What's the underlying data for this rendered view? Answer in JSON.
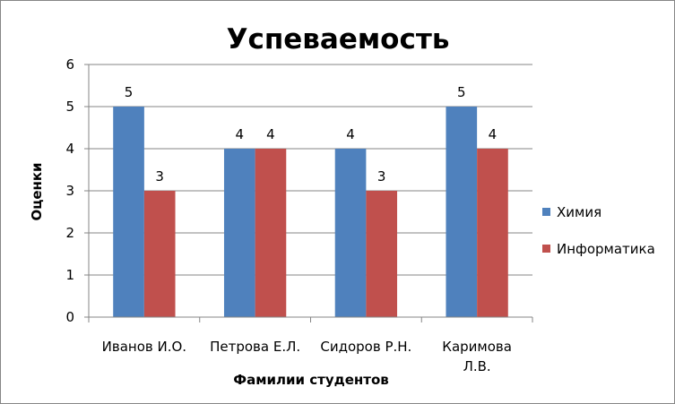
{
  "chart_data": {
    "type": "bar",
    "title": "Успеваемость",
    "xlabel": "Фамилии студентов",
    "ylabel": "Оценки",
    "categories": [
      [
        "Иванов И.О."
      ],
      [
        "Петрова Е.Л."
      ],
      [
        "Сидоров Р.Н."
      ],
      [
        "Каримова",
        "Л.В."
      ]
    ],
    "series": [
      {
        "name": "Химия",
        "values": [
          5,
          4,
          4,
          5
        ],
        "color": "#4F81BD"
      },
      {
        "name": "Информатика",
        "values": [
          3,
          4,
          3,
          4
        ],
        "color": "#C0504D"
      }
    ],
    "ylim": [
      0,
      6
    ],
    "yticks": [
      0,
      1,
      2,
      3,
      4,
      5,
      6
    ],
    "grid": true,
    "legend": "right",
    "data_labels": true
  }
}
